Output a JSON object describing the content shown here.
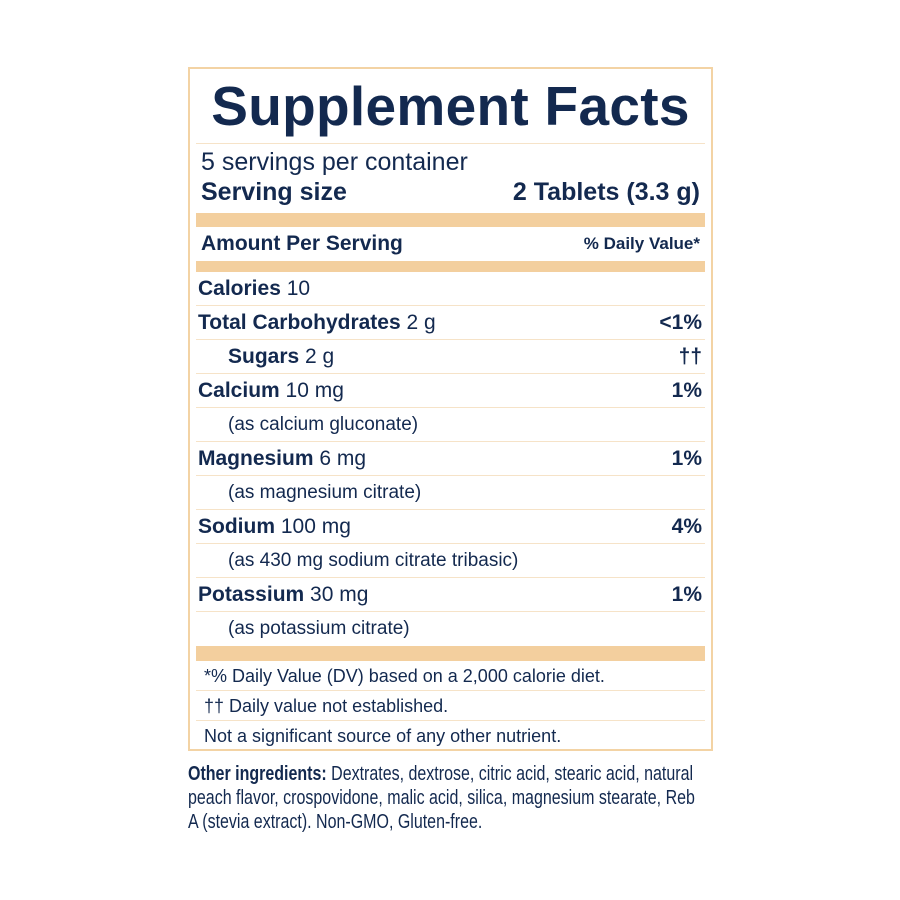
{
  "title": "Supplement Facts",
  "servings_per_container": "5 servings per container",
  "serving_size_label": "Serving size",
  "serving_size_value": "2 Tablets (3.3 g)",
  "amount_per_serving": "Amount Per Serving",
  "daily_value_header": "% Daily Value*",
  "rows": [
    {
      "name": "Calories",
      "amount": " 10",
      "dv": ""
    },
    {
      "name": "Total Carbohydrates",
      "amount": " 2 g",
      "dv": "<1%"
    },
    {
      "name": "Sugars",
      "amount": " 2 g",
      "dv": "††"
    },
    {
      "name": "Calcium",
      "amount": " 10 mg",
      "dv": "1%"
    },
    {
      "note": "(as calcium gluconate)"
    },
    {
      "name": "Magnesium",
      "amount": " 6 mg",
      "dv": "1%"
    },
    {
      "note": "(as magnesium citrate)"
    },
    {
      "name": "Sodium",
      "amount": " 100 mg",
      "dv": "4%"
    },
    {
      "note": "(as 430 mg sodium citrate tribasic)"
    },
    {
      "name": "Potassium",
      "amount": " 30 mg",
      "dv": "1%"
    },
    {
      "note": "(as potassium citrate)"
    }
  ],
  "footnotes": [
    "*% Daily Value (DV) based on a 2,000 calorie diet.",
    "†† Daily value not established.",
    "Not a significant source of any other nutrient."
  ],
  "other_ingredients_label": "Other ingredients:",
  "other_ingredients_text": " Dextrates, dextrose, citric acid, stearic acid, natural peach flavor, crospovidone, malic acid, silica, magnesium stearate, Reb A (stevia extract). Non-GMO, Gluten-free.",
  "colors": {
    "text": "#13294f",
    "accent_bar": "#f3cf9e",
    "border": "#f3d3a4"
  }
}
